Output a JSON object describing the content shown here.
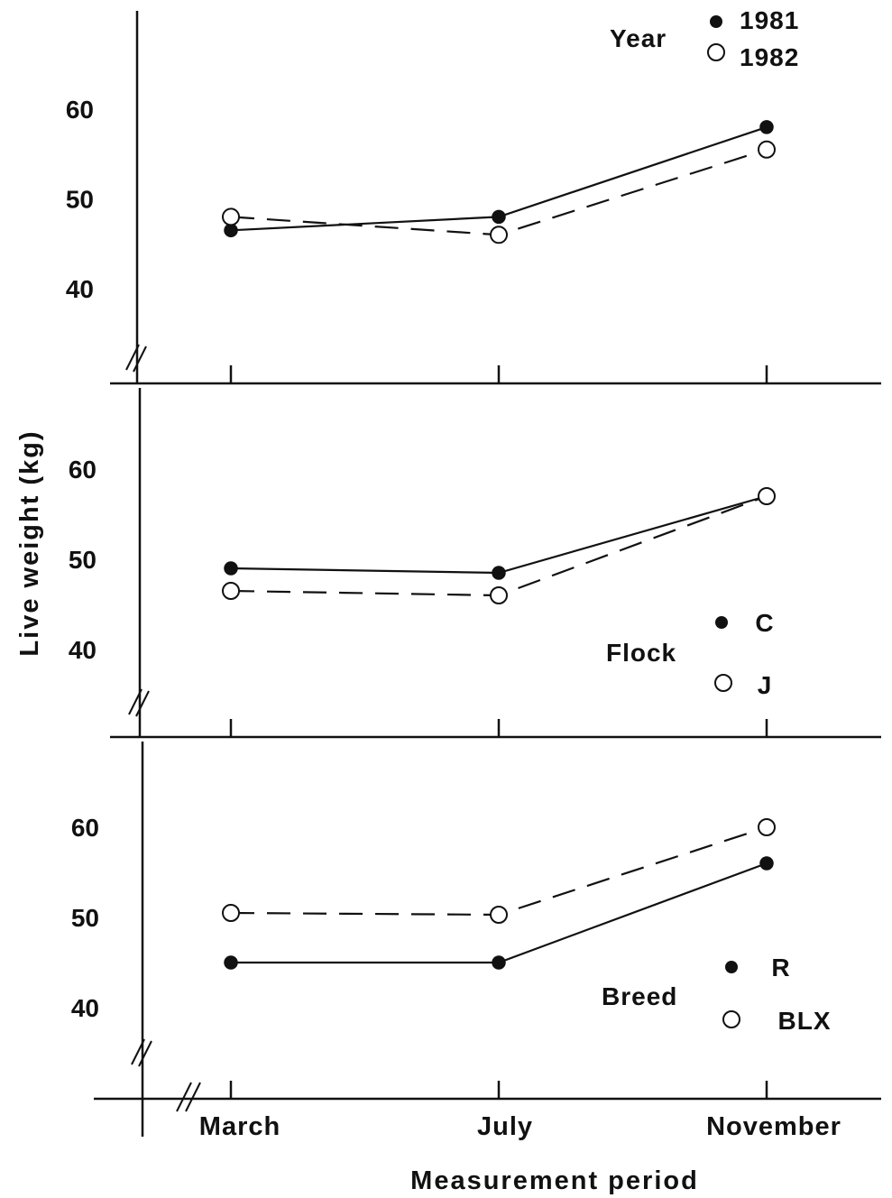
{
  "chart_data": [
    {
      "type": "line",
      "panel": "top",
      "categories": [
        "March",
        "July",
        "November"
      ],
      "ylabel": "Live weight (kg)",
      "xlabel": "Measurement period",
      "ylim": [
        32,
        70
      ],
      "yticks": [
        40,
        50,
        60
      ],
      "legend": {
        "title": "Year",
        "placement": "top-right"
      },
      "series": [
        {
          "name": "1981",
          "marker": "filled",
          "line": "solid",
          "values": [
            46.5,
            48,
            58
          ]
        },
        {
          "name": "1982",
          "marker": "open",
          "line": "dashed",
          "values": [
            48,
            46,
            55.5
          ]
        }
      ]
    },
    {
      "type": "line",
      "panel": "middle",
      "categories": [
        "March",
        "July",
        "November"
      ],
      "ylim": [
        32,
        70
      ],
      "yticks": [
        40,
        50,
        60
      ],
      "legend": {
        "title": "Flock",
        "placement": "bottom-right"
      },
      "series": [
        {
          "name": "C",
          "marker": "filled",
          "line": "solid",
          "values": [
            49,
            48.5,
            57
          ]
        },
        {
          "name": "J",
          "marker": "open",
          "line": "dashed",
          "values": [
            46.5,
            46,
            57
          ]
        }
      ]
    },
    {
      "type": "line",
      "panel": "bottom",
      "categories": [
        "March",
        "July",
        "November"
      ],
      "ylim": [
        32,
        70
      ],
      "yticks": [
        40,
        50,
        60
      ],
      "legend": {
        "title": "Breed",
        "placement": "bottom-right"
      },
      "series": [
        {
          "name": "R",
          "marker": "filled",
          "line": "solid",
          "values": [
            45,
            45,
            56
          ]
        },
        {
          "name": "BLX",
          "marker": "open",
          "line": "dashed",
          "values": [
            50.5,
            50.3,
            60
          ]
        }
      ]
    }
  ]
}
